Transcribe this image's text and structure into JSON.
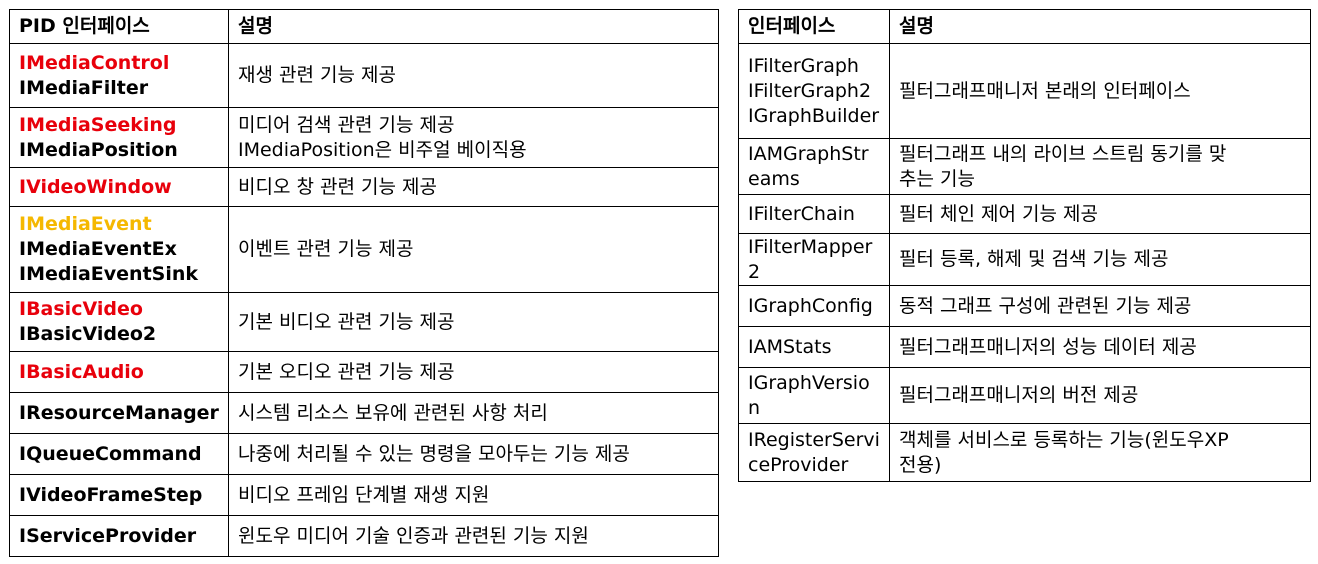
{
  "colors": {
    "red": "#e8000b",
    "yellow": "#f5b800",
    "black": "#000000"
  },
  "left_table": {
    "headers": [
      "PID 인터페이스",
      "설명"
    ],
    "rows": [
      {
        "ifaces": [
          {
            "name": "IMediaControl",
            "color": "red"
          },
          {
            "name": "IMediaFilter",
            "color": "black"
          }
        ],
        "desc": [
          "재생 관련 기능 제공"
        ]
      },
      {
        "ifaces": [
          {
            "name": "IMediaSeeking",
            "color": "red"
          },
          {
            "name": "IMediaPosition",
            "color": "black"
          }
        ],
        "desc": [
          "미디어 검색 관련 기능 제공",
          "IMediaPosition은 비주얼 베이직용"
        ]
      },
      {
        "ifaces": [
          {
            "name": "IVideoWindow",
            "color": "red"
          }
        ],
        "desc": [
          "비디오 창 관련 기능 제공"
        ]
      },
      {
        "ifaces": [
          {
            "name": "IMediaEvent",
            "color": "yellow"
          },
          {
            "name": "IMediaEventEx",
            "color": "black"
          },
          {
            "name": "IMediaEventSink",
            "color": "black"
          }
        ],
        "desc": [
          "이벤트 관련 기능 제공"
        ]
      },
      {
        "ifaces": [
          {
            "name": "IBasicVideo",
            "color": "red"
          },
          {
            "name": "IBasicVideo2",
            "color": "black"
          }
        ],
        "desc": [
          "기본 비디오 관련 기능 제공"
        ]
      },
      {
        "ifaces": [
          {
            "name": "IBasicAudio",
            "color": "red"
          }
        ],
        "desc": [
          "기본 오디오 관련 기능 제공"
        ]
      },
      {
        "ifaces": [
          {
            "name": "IResourceManager",
            "color": "black"
          }
        ],
        "desc": [
          "시스템 리소스 보유에 관련된 사항 처리"
        ]
      },
      {
        "ifaces": [
          {
            "name": "IQueueCommand",
            "color": "black"
          }
        ],
        "desc": [
          "나중에 처리될 수 있는 명령을 모아두는 기능 제공"
        ]
      },
      {
        "ifaces": [
          {
            "name": "IVideoFrameStep",
            "color": "black"
          }
        ],
        "desc": [
          "비디오 프레임 단계별 재생 지원"
        ]
      },
      {
        "ifaces": [
          {
            "name": "IServiceProvider",
            "color": "black"
          }
        ],
        "desc": [
          "윈도우 미디어 기술 인증과 관련된 기능 지원"
        ]
      }
    ]
  },
  "right_table": {
    "headers": [
      "인터페이스",
      "설명"
    ],
    "rows": [
      {
        "iface": [
          "IFilterGraph",
          "IFilterGraph2",
          "IGraphBuilder"
        ],
        "desc": [
          "필터그래프매니저 본래의 인터페이스"
        ]
      },
      {
        "iface": [
          "IAMGraphStr",
          "eams"
        ],
        "desc": [
          "필터그래프 내의 라이브 스트림 동기를 맞",
          "추는 기능"
        ]
      },
      {
        "iface": [
          "IFilterChain"
        ],
        "desc": [
          "필터 체인 제어 기능 제공"
        ]
      },
      {
        "iface": [
          "IFilterMapper",
          "2"
        ],
        "desc": [
          "필터 등록, 해제 및 검색 기능 제공"
        ]
      },
      {
        "iface": [
          "IGraphConfig"
        ],
        "desc": [
          "동적 그래프 구성에 관련된 기능 제공"
        ]
      },
      {
        "iface": [
          "IAMStats"
        ],
        "desc": [
          "필터그래프매니저의 성능 데이터 제공"
        ]
      },
      {
        "iface": [
          "IGraphVersio",
          "n"
        ],
        "desc": [
          "필터그래프매니저의 버전 제공"
        ]
      },
      {
        "iface": [
          "IRegisterServi",
          "ceProvider"
        ],
        "desc": [
          "객체를 서비스로 등록하는 기능(윈도우XP",
          "전용)"
        ]
      }
    ]
  }
}
